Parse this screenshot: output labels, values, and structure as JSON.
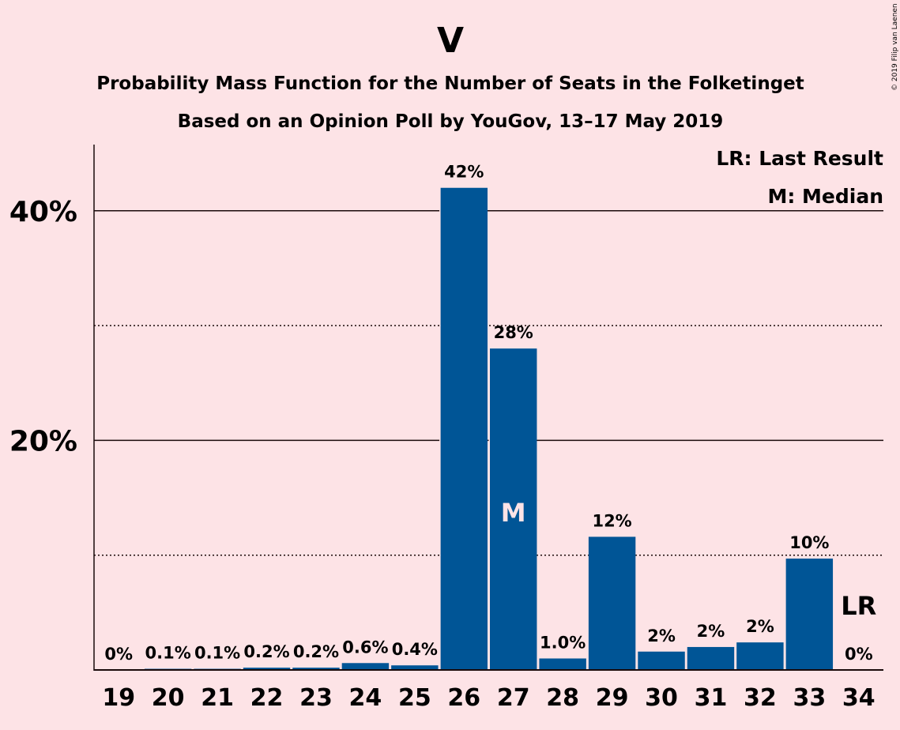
{
  "chart_data": {
    "type": "bar",
    "title": "V",
    "subtitle": "Probability Mass Function for the Number of Seats in the Folketinget",
    "subtitle2": "Based on an Opinion Poll by YouGov, 13–17 May 2019",
    "copyright": "© 2019 Filip van Laenen",
    "categories": [
      "19",
      "20",
      "21",
      "22",
      "23",
      "24",
      "25",
      "26",
      "27",
      "28",
      "29",
      "30",
      "31",
      "32",
      "33",
      "34"
    ],
    "values": [
      0,
      0.1,
      0.1,
      0.2,
      0.2,
      0.6,
      0.4,
      42,
      28,
      1.0,
      11.6,
      1.6,
      2.0,
      2.4,
      9.7,
      0
    ],
    "data_labels": [
      "0%",
      "0.1%",
      "0.1%",
      "0.2%",
      "0.2%",
      "0.6%",
      "0.4%",
      "42%",
      "28%",
      "1.0%",
      "12%",
      "2%",
      "2%",
      "2%",
      "10%",
      "0%"
    ],
    "ylim": [
      0,
      45
    ],
    "yticks": [
      20,
      40
    ],
    "ytick_labels": [
      "20%",
      "40%"
    ],
    "minor_gridlines": [
      10,
      30
    ],
    "bar_color": "#005596",
    "background_color": "#fde3e6",
    "median_category": "27",
    "median_marker": "M",
    "last_result_category": "34",
    "last_result_marker": "LR",
    "legend": [
      "LR: Last Result",
      "M: Median"
    ],
    "legend_position": "top-right"
  }
}
